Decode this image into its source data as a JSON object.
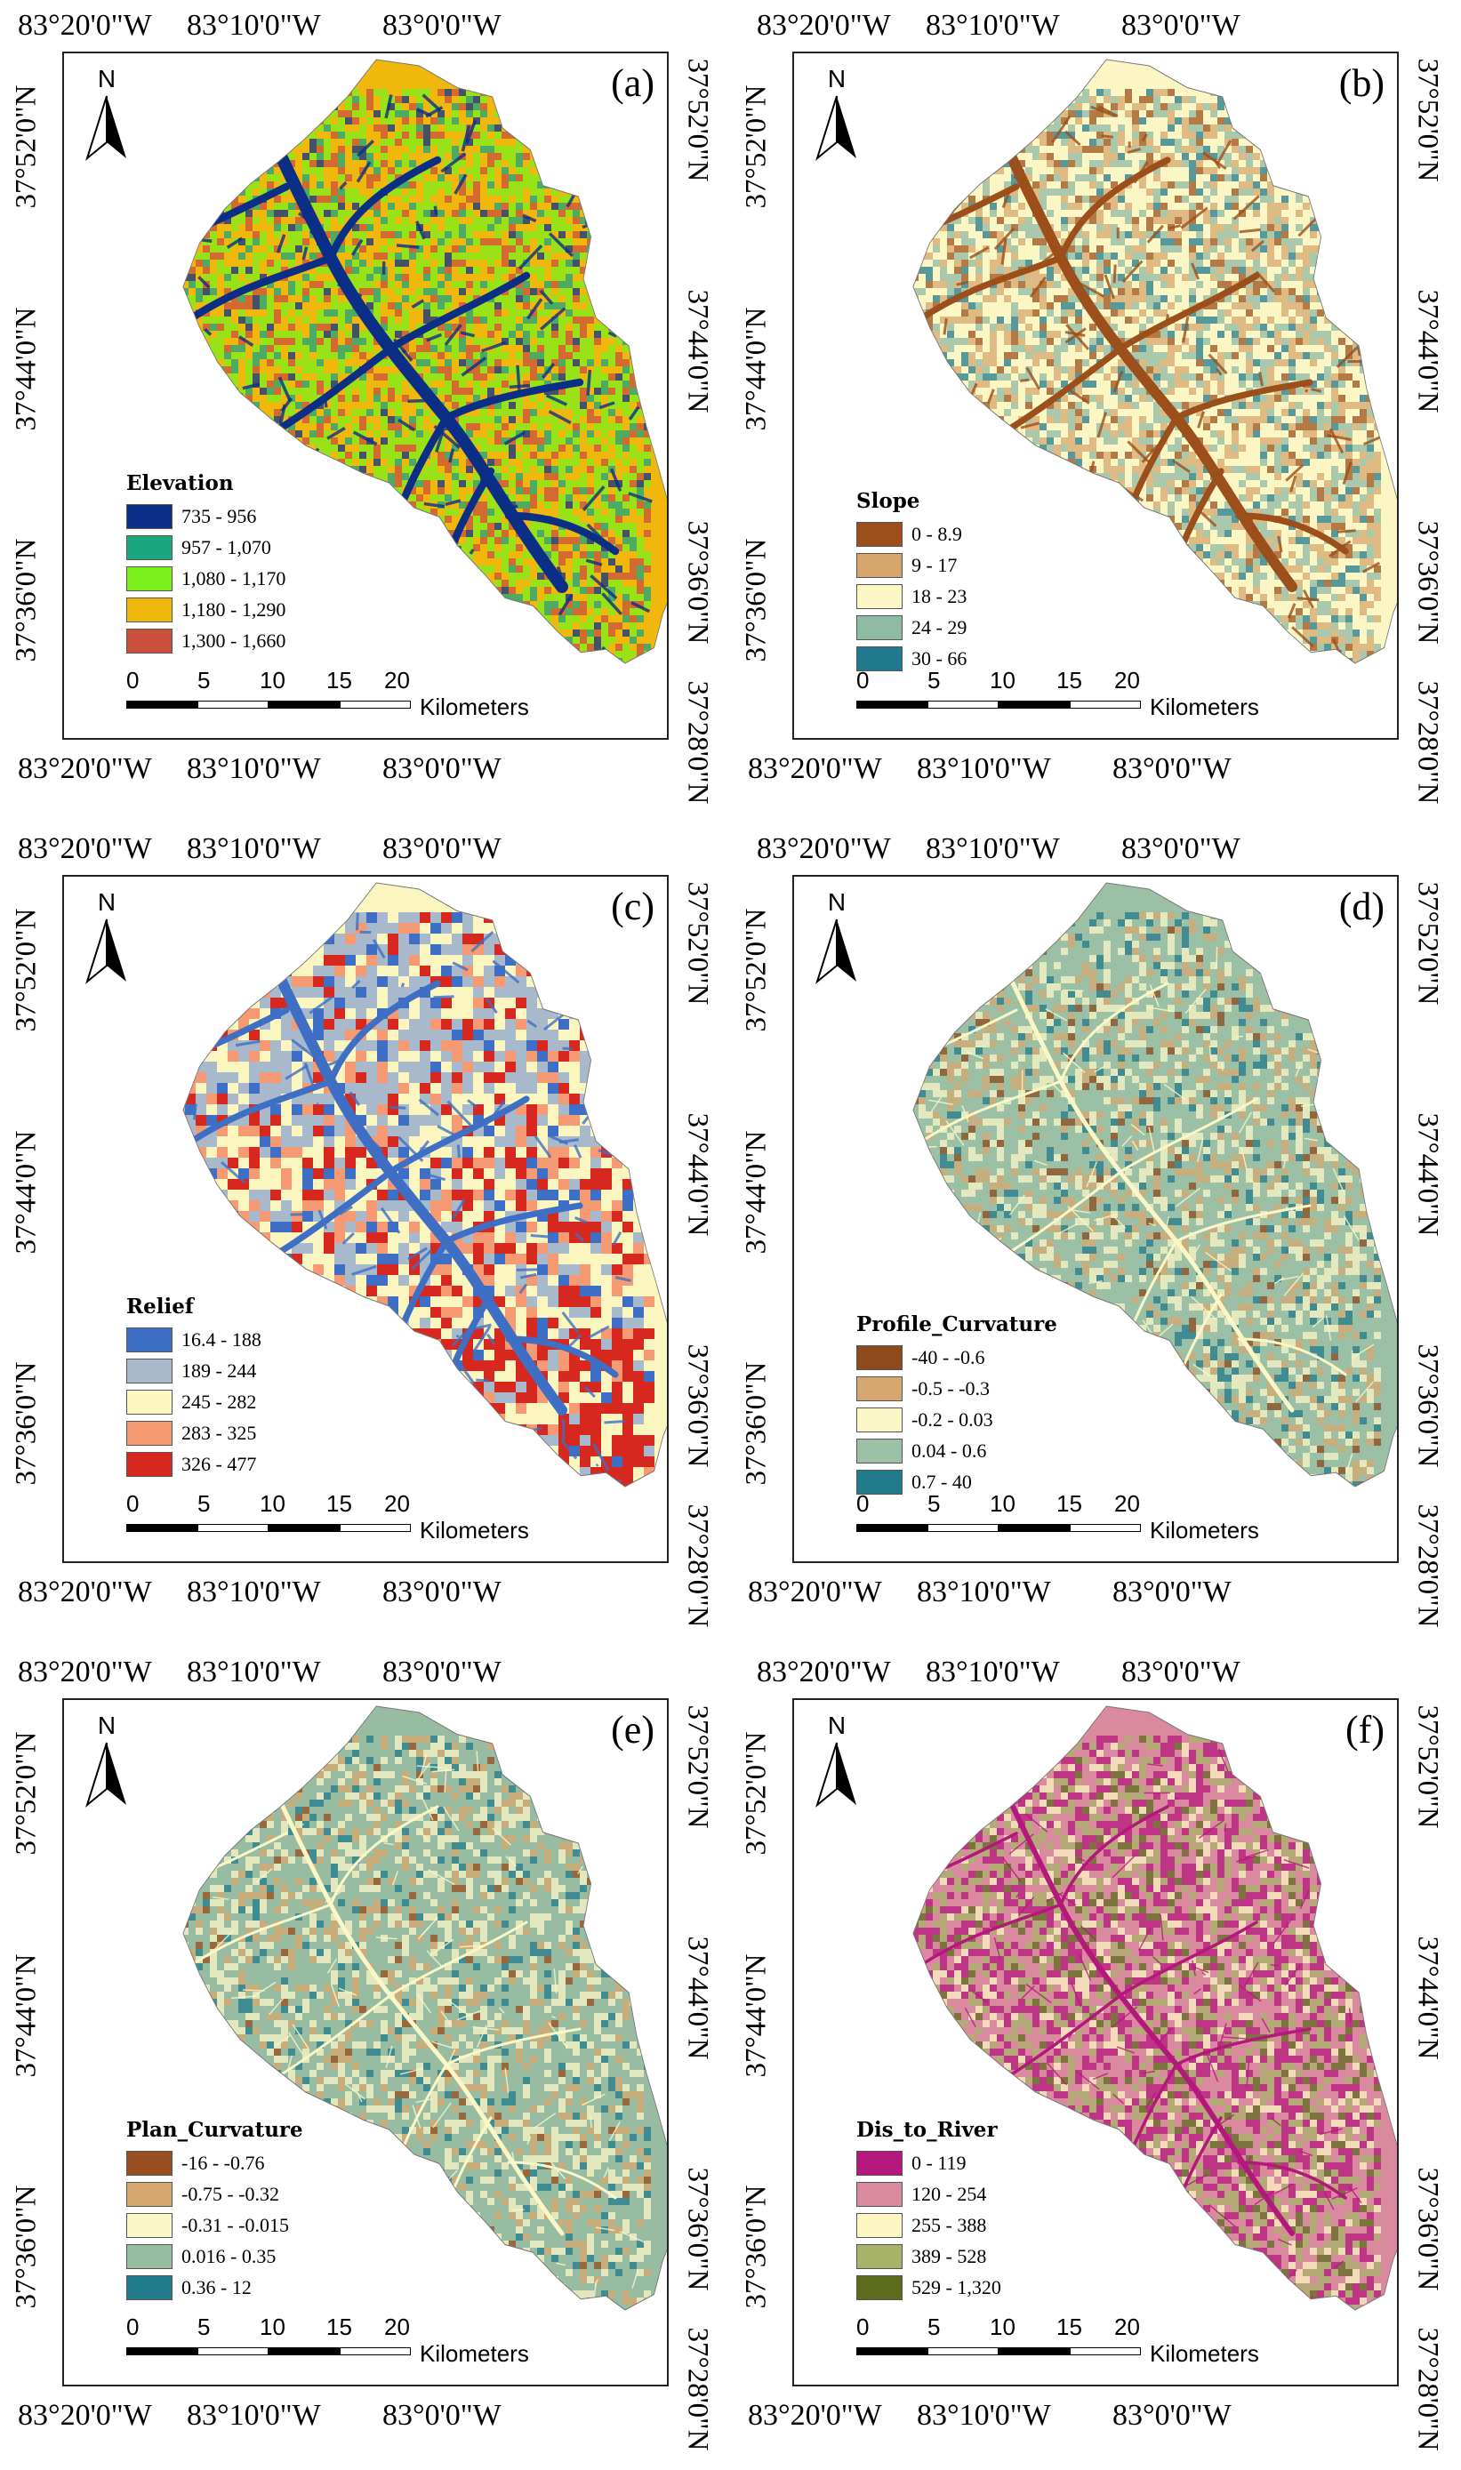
{
  "coords": {
    "top": [
      "83°20'0\"W",
      "83°10'0\"W",
      "83°0'0\"W"
    ],
    "bottom": [
      "83°20'0\"W",
      "83°10'0\"W",
      "83°0'0\"W"
    ],
    "left": [
      "37°52'0\"N",
      "37°44'0\"N",
      "37°36'0\"N"
    ],
    "right": [
      "37°52'0\"N",
      "37°44'0\"N",
      "37°36'0\"N",
      "37°28'0\"N"
    ]
  },
  "north_label": "N",
  "scale": {
    "ticks": [
      "0",
      "5",
      "10",
      "15",
      "20"
    ],
    "unit": "Kilometers"
  },
  "panels": [
    {
      "id": "a",
      "label": "(a)",
      "legend_title": "Elevation",
      "style": "elevation",
      "classes": [
        {
          "label": "735 - 956",
          "color": "#0b2f86"
        },
        {
          "label": "957 - 1,070",
          "color": "#19a57e"
        },
        {
          "label": "1,080 - 1,170",
          "color": "#7cf01c"
        },
        {
          "label": "1,180 - 1,290",
          "color": "#f0b80c"
        },
        {
          "label": "1,300 - 1,660",
          "color": "#c9503c"
        }
      ]
    },
    {
      "id": "b",
      "label": "(b)",
      "legend_title": "Slope",
      "style": "slope",
      "classes": [
        {
          "label": "0 - 8.9",
          "color": "#9c4f1a"
        },
        {
          "label": "9 - 17",
          "color": "#d6a56c"
        },
        {
          "label": "18 - 23",
          "color": "#fbf6c4"
        },
        {
          "label": "24 - 29",
          "color": "#8fbaa4"
        },
        {
          "label": "30 - 66",
          "color": "#20798c"
        }
      ]
    },
    {
      "id": "c",
      "label": "(c)",
      "legend_title": "Relief",
      "style": "relief",
      "classes": [
        {
          "label": "16.4 - 188",
          "color": "#3e6fc4"
        },
        {
          "label": "189 - 244",
          "color": "#a7b9cb"
        },
        {
          "label": "245 - 282",
          "color": "#fbf6c0"
        },
        {
          "label": "283 - 325",
          "color": "#f59a72"
        },
        {
          "label": "326 - 477",
          "color": "#d6281f"
        }
      ]
    },
    {
      "id": "d",
      "label": "(d)",
      "legend_title": "Profile_Curvature",
      "style": "profile",
      "classes": [
        {
          "label": "-40 - -0.6",
          "color": "#8e4a1c"
        },
        {
          "label": "-0.5 - -0.3",
          "color": "#d6a870"
        },
        {
          "label": "-0.2 - 0.03",
          "color": "#fbf6c6"
        },
        {
          "label": "0.04 - 0.6",
          "color": "#9cc0a6"
        },
        {
          "label": "0.7 - 40",
          "color": "#217b8b"
        }
      ]
    },
    {
      "id": "e",
      "label": "(e)",
      "legend_title": "Plan_Curvature",
      "style": "plan",
      "classes": [
        {
          "label": "-16 - -0.76",
          "color": "#984e1e"
        },
        {
          "label": "-0.75 - -0.32",
          "color": "#d7a86f"
        },
        {
          "label": "-0.31 - -0.015",
          "color": "#fbf6c6"
        },
        {
          "label": "0.016 - 0.35",
          "color": "#97bca2"
        },
        {
          "label": "0.36 - 12",
          "color": "#227c8c"
        }
      ]
    },
    {
      "id": "f",
      "label": "(f)",
      "legend_title": "Dis_to_River",
      "style": "river",
      "classes": [
        {
          "label": "0 - 119",
          "color": "#b5187c"
        },
        {
          "label": "120 - 254",
          "color": "#d98a9e"
        },
        {
          "label": "255 - 388",
          "color": "#fbf6c2"
        },
        {
          "label": "389 - 528",
          "color": "#a8b36a"
        },
        {
          "label": "529 - 1,320",
          "color": "#5d6b1d"
        }
      ]
    }
  ]
}
